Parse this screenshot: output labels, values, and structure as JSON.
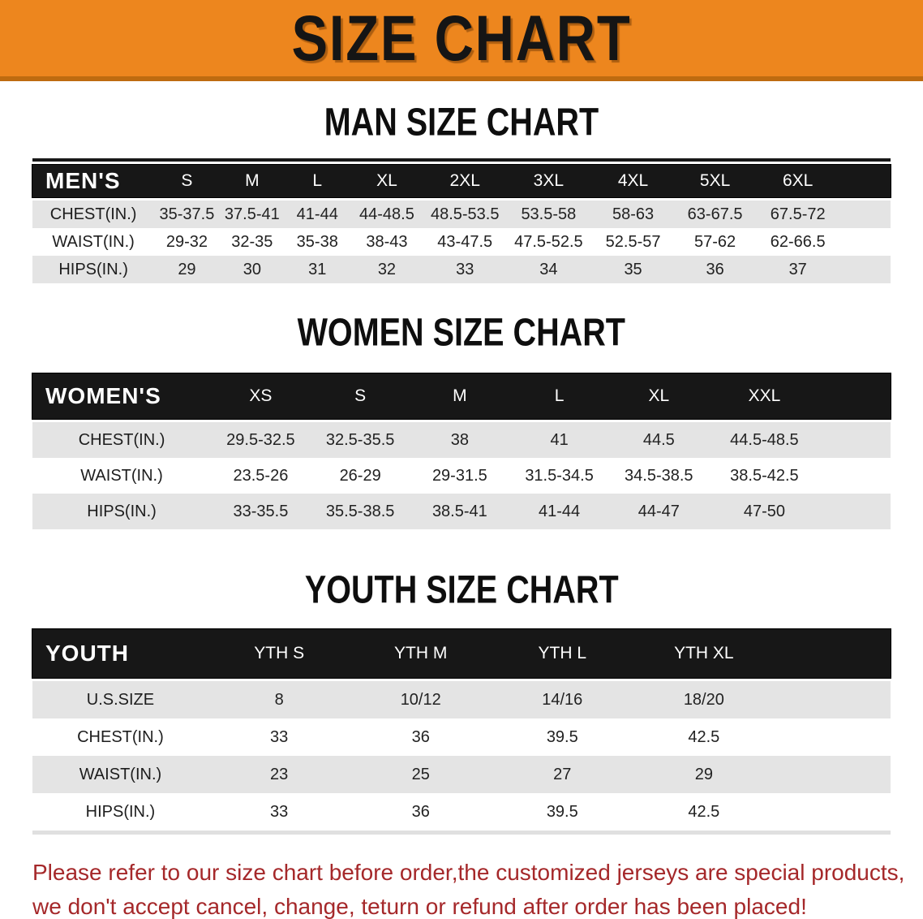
{
  "banner": {
    "title": "SIZE CHART"
  },
  "sections": [
    {
      "heading": "MAN SIZE CHART",
      "table": {
        "header": [
          "MEN'S",
          "S",
          "M",
          "L",
          "XL",
          "2XL",
          "3XL",
          "4XL",
          "5XL",
          "6XL"
        ],
        "rows": [
          [
            "CHEST(IN.)",
            "35-37.5",
            "37.5-41",
            "41-44",
            "44-48.5",
            "48.5-53.5",
            "53.5-58",
            "58-63",
            "63-67.5",
            "67.5-72"
          ],
          [
            "WAIST(IN.)",
            "29-32",
            "32-35",
            "35-38",
            "38-43",
            "43-47.5",
            "47.5-52.5",
            "52.5-57",
            "57-62",
            "62-66.5"
          ],
          [
            "HIPS(IN.)",
            "29",
            "30",
            "31",
            "32",
            "33",
            "34",
            "35",
            "36",
            "37"
          ]
        ]
      }
    },
    {
      "heading": "WOMEN SIZE CHART",
      "table": {
        "header": [
          "WOMEN'S",
          "XS",
          "S",
          "M",
          "L",
          "XL",
          "XXL"
        ],
        "rows": [
          [
            "CHEST(IN.)",
            "29.5-32.5",
            "32.5-35.5",
            "38",
            "41",
            "44.5",
            "44.5-48.5"
          ],
          [
            "WAIST(IN.)",
            "23.5-26",
            "26-29",
            "29-31.5",
            "31.5-34.5",
            "34.5-38.5",
            "38.5-42.5"
          ],
          [
            "HIPS(IN.)",
            "33-35.5",
            "35.5-38.5",
            "38.5-41",
            "41-44",
            "44-47",
            "47-50"
          ]
        ]
      }
    },
    {
      "heading": "YOUTH SIZE CHART",
      "table": {
        "header": [
          "YOUTH",
          "YTH S",
          "YTH M",
          "YTH L",
          "YTH XL"
        ],
        "rows": [
          [
            "U.S.SIZE",
            "8",
            "10/12",
            "14/16",
            "18/20"
          ],
          [
            "CHEST(IN.)",
            "33",
            "36",
            "39.5",
            "42.5"
          ],
          [
            "WAIST(IN.)",
            "23",
            "25",
            "27",
            "29"
          ],
          [
            "HIPS(IN.)",
            "33",
            "36",
            "39.5",
            "42.5"
          ]
        ]
      }
    }
  ],
  "disclaimer": {
    "line1": "Please refer to our size chart before order,the customized jerseys are special products,",
    "line2": "we don't accept cancel, change, teturn or refund after order has been placed!"
  },
  "colors": {
    "banner_orange": "#ED861E",
    "banner_bottom_edge": "#BE6B10",
    "table_header_black": "#171717",
    "row_gray": "#E4E4E4",
    "row_white": "#FFFFFF",
    "disclaimer_red": "#A5282A"
  }
}
